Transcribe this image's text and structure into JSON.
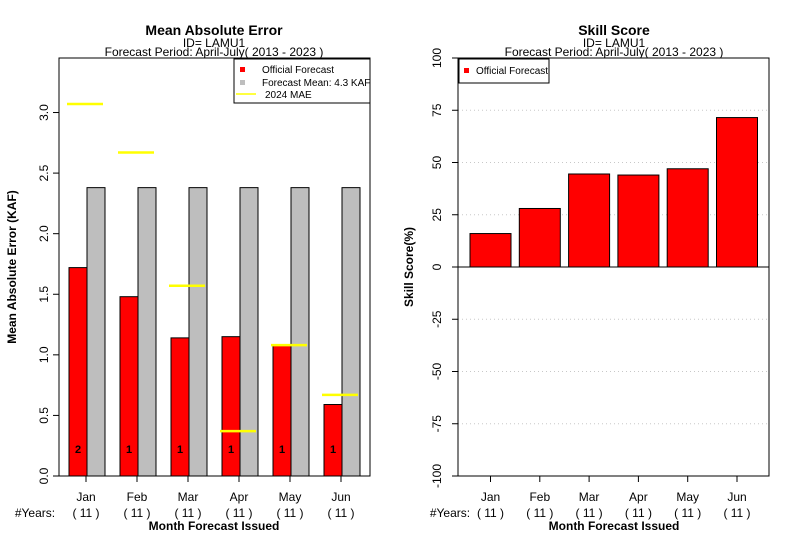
{
  "chart_data": [
    {
      "type": "bar",
      "title": "Mean Absolute Error",
      "subtitle_id": "ID= LAMU1",
      "subtitle_period": "Forecast Period: April-July( 2013 - 2023 )",
      "ylabel": "Mean Absolute Error (KAF)",
      "xlabel": "Month Forecast Issued",
      "ylim": [
        0,
        3.45
      ],
      "yticks": [
        "0.0",
        "0.5",
        "1.0",
        "1.5",
        "2.0",
        "2.5",
        "3.0"
      ],
      "categories": [
        "Jan",
        "Feb",
        "Mar",
        "Apr",
        "May",
        "Jun"
      ],
      "years_label": "#Years:",
      "years": [
        "( 11 )",
        "( 11 )",
        "( 11 )",
        "( 11 )",
        "( 11 )",
        "( 11 )"
      ],
      "series": [
        {
          "name": "Official Forecast",
          "color": "#ff0000",
          "values": [
            1.72,
            1.48,
            1.14,
            1.15,
            1.08,
            0.59
          ]
        },
        {
          "name": "Forecast Mean: 4.3 KAF",
          "color": "#bebebe",
          "values": [
            2.38,
            2.38,
            2.38,
            2.38,
            2.38,
            2.38
          ]
        }
      ],
      "mae_2024": {
        "name": "2024  MAE",
        "color": "#ffff00",
        "values": [
          3.07,
          2.67,
          1.57,
          0.37,
          1.08,
          0.67
        ]
      },
      "bar_labels": [
        "2",
        "1",
        "1",
        "1",
        "1",
        "1"
      ],
      "legend_position": "top-right",
      "grid": false
    },
    {
      "type": "bar",
      "title": "Skill Score",
      "subtitle_id": "ID= LAMU1",
      "subtitle_period": "Forecast Period: April-July( 2013 - 2023 )",
      "ylabel": "Skill Score(%)",
      "xlabel": "Month Forecast Issued",
      "ylim": [
        -100,
        100
      ],
      "yticks": [
        "-100",
        "-75",
        "-50",
        "-25",
        "0",
        "25",
        "50",
        "75",
        "100"
      ],
      "categories": [
        "Jan",
        "Feb",
        "Mar",
        "Apr",
        "May",
        "Jun"
      ],
      "years_label": "#Years:",
      "years": [
        "( 11 )",
        "( 11 )",
        "( 11 )",
        "( 11 )",
        "( 11 )",
        "( 11 )"
      ],
      "series": [
        {
          "name": "Official Forecast",
          "color": "#ff0000",
          "values": [
            16,
            28,
            44.5,
            44,
            47,
            71.5
          ]
        }
      ],
      "legend_position": "top-left",
      "grid": true
    }
  ]
}
